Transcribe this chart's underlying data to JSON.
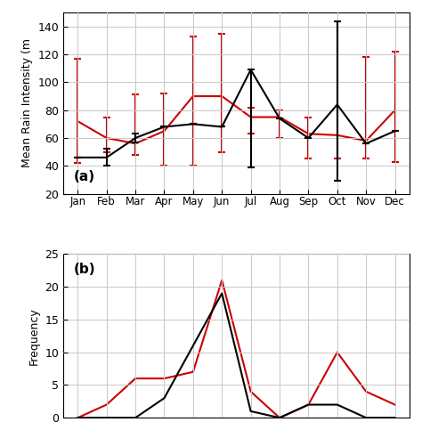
{
  "months": [
    "Jan",
    "Feb",
    "Mar",
    "Apr",
    "May",
    "Jun",
    "Jul",
    "Aug",
    "Sep",
    "Oct",
    "Nov",
    "Dec"
  ],
  "panel_a": {
    "black_mean": [
      46,
      46,
      60,
      68,
      70,
      68,
      109,
      74,
      60,
      84,
      56,
      65
    ],
    "black_err_lo": [
      0,
      6,
      3,
      0,
      0,
      0,
      70,
      0,
      0,
      55,
      0,
      0
    ],
    "black_err_hi": [
      0,
      6,
      3,
      0,
      0,
      0,
      0,
      0,
      0,
      60,
      0,
      0
    ],
    "red_mean": [
      72,
      60,
      56,
      65,
      90,
      90,
      75,
      75,
      63,
      62,
      58,
      80
    ],
    "red_err_lo": [
      30,
      10,
      8,
      25,
      50,
      40,
      12,
      15,
      18,
      17,
      13,
      37
    ],
    "red_err_hi": [
      45,
      15,
      35,
      27,
      43,
      45,
      7,
      5,
      12,
      82,
      60,
      42
    ]
  },
  "panel_b": {
    "black_freq": [
      0,
      0,
      0,
      3,
      11,
      19,
      1,
      0,
      2,
      2,
      0,
      0
    ],
    "red_freq": [
      0,
      2,
      6,
      6,
      7,
      21,
      4,
      0,
      2,
      10,
      4,
      2
    ]
  },
  "panel_a_ylabel": "Mean Rain Intensity (m",
  "panel_b_ylabel": "Frequency",
  "panel_a_ylim": [
    20,
    150
  ],
  "panel_b_ylim": [
    0,
    25
  ],
  "panel_a_yticks": [
    20,
    40,
    60,
    80,
    100,
    120,
    140
  ],
  "panel_b_yticks": [
    0,
    5,
    10,
    15,
    20,
    25
  ],
  "black_color": "#000000",
  "red_color": "#cc0000",
  "grid_color": "#c8c8c8",
  "bg_color": "#ffffff",
  "label_a": "(a)",
  "label_b": "(b)",
  "month_fontsize": 8.5,
  "ylabel_fontsize": 9,
  "label_fontsize": 11
}
